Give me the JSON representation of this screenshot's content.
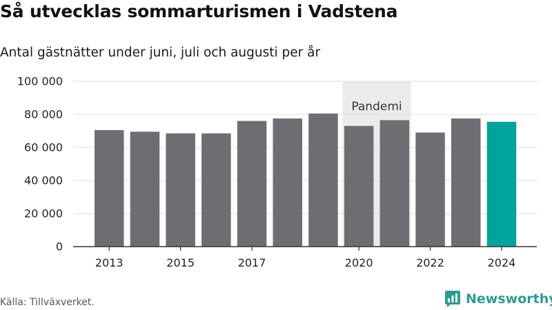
{
  "header": {
    "title": "Så utvecklas sommarturismen i Vadstena",
    "subtitle": "Antal gästnätter under juni, juli och augusti per år"
  },
  "footer": {
    "source": "Källa: Tillväxverket.",
    "brand": "Newsworthy",
    "brand_icon": "chat-bubble-bar-chart-icon"
  },
  "colors": {
    "bar": "#6e6d72",
    "highlight": "#00a49a",
    "band": "#ebebeb",
    "grid": "#dddddd",
    "axis": "#333333",
    "brand": "#2a9d8f"
  },
  "chart_data": {
    "type": "bar",
    "categories": [
      "2013",
      "2014",
      "2015",
      "2016",
      "2017",
      "2018",
      "2019",
      "2020",
      "2021",
      "2022",
      "2023",
      "2024"
    ],
    "values": [
      70500,
      69500,
      68500,
      68500,
      76000,
      77500,
      80500,
      73000,
      76500,
      69000,
      77500,
      75500
    ],
    "highlight_category": "2024",
    "x_tick_labels": [
      "2013",
      "2015",
      "2017",
      "2020",
      "2022",
      "2024"
    ],
    "y_ticks": [
      0,
      20000,
      40000,
      60000,
      80000,
      100000
    ],
    "y_tick_labels": [
      "0",
      "20 000",
      "40 000",
      "60 000",
      "80 000",
      "100 000"
    ],
    "ylim": [
      0,
      100000
    ],
    "grid": true,
    "annotations": [
      {
        "label": "Pandemi",
        "from": "2020",
        "to": "2021"
      }
    ]
  }
}
